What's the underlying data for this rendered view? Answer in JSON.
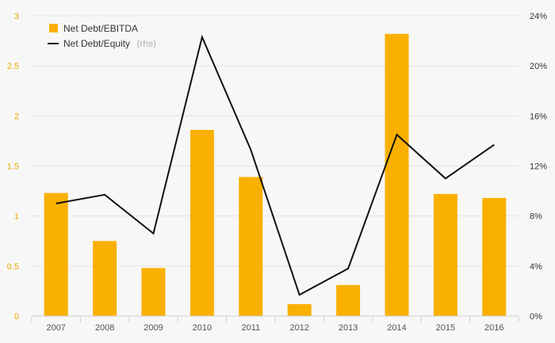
{
  "chart_data": {
    "type": "bar+line",
    "categories": [
      "2007",
      "2008",
      "2009",
      "2010",
      "2011",
      "2012",
      "2013",
      "2014",
      "2015",
      "2016"
    ],
    "series": [
      {
        "name": "Net Debt/EBITDA",
        "type": "bar",
        "axis": "left",
        "color": "#f9b000",
        "values": [
          1.23,
          0.75,
          0.48,
          1.86,
          1.39,
          0.12,
          0.31,
          2.82,
          1.22,
          1.18
        ]
      },
      {
        "name": "Net Debt/Equity",
        "note": "(rhs)",
        "type": "line",
        "axis": "right",
        "color": "#111111",
        "values": [
          0.09,
          0.097,
          0.066,
          0.223,
          0.133,
          0.017,
          0.038,
          0.145,
          0.11,
          0.137
        ]
      }
    ],
    "y_left": {
      "range": [
        0,
        3
      ],
      "ticks": [
        "0",
        "0.5",
        "1",
        "1.5",
        "2",
        "2.5",
        "3"
      ],
      "color": "#e8a800"
    },
    "y_right": {
      "range": [
        0,
        0.24
      ],
      "ticks": [
        "0%",
        "4%",
        "8%",
        "12%",
        "16%",
        "20%",
        "24%"
      ]
    },
    "grid": true,
    "legend_position": "top-left"
  },
  "legend": {
    "bar_label": "Net Debt/EBITDA",
    "line_label": "Net Debt/Equity",
    "line_note": "(rhs)"
  }
}
